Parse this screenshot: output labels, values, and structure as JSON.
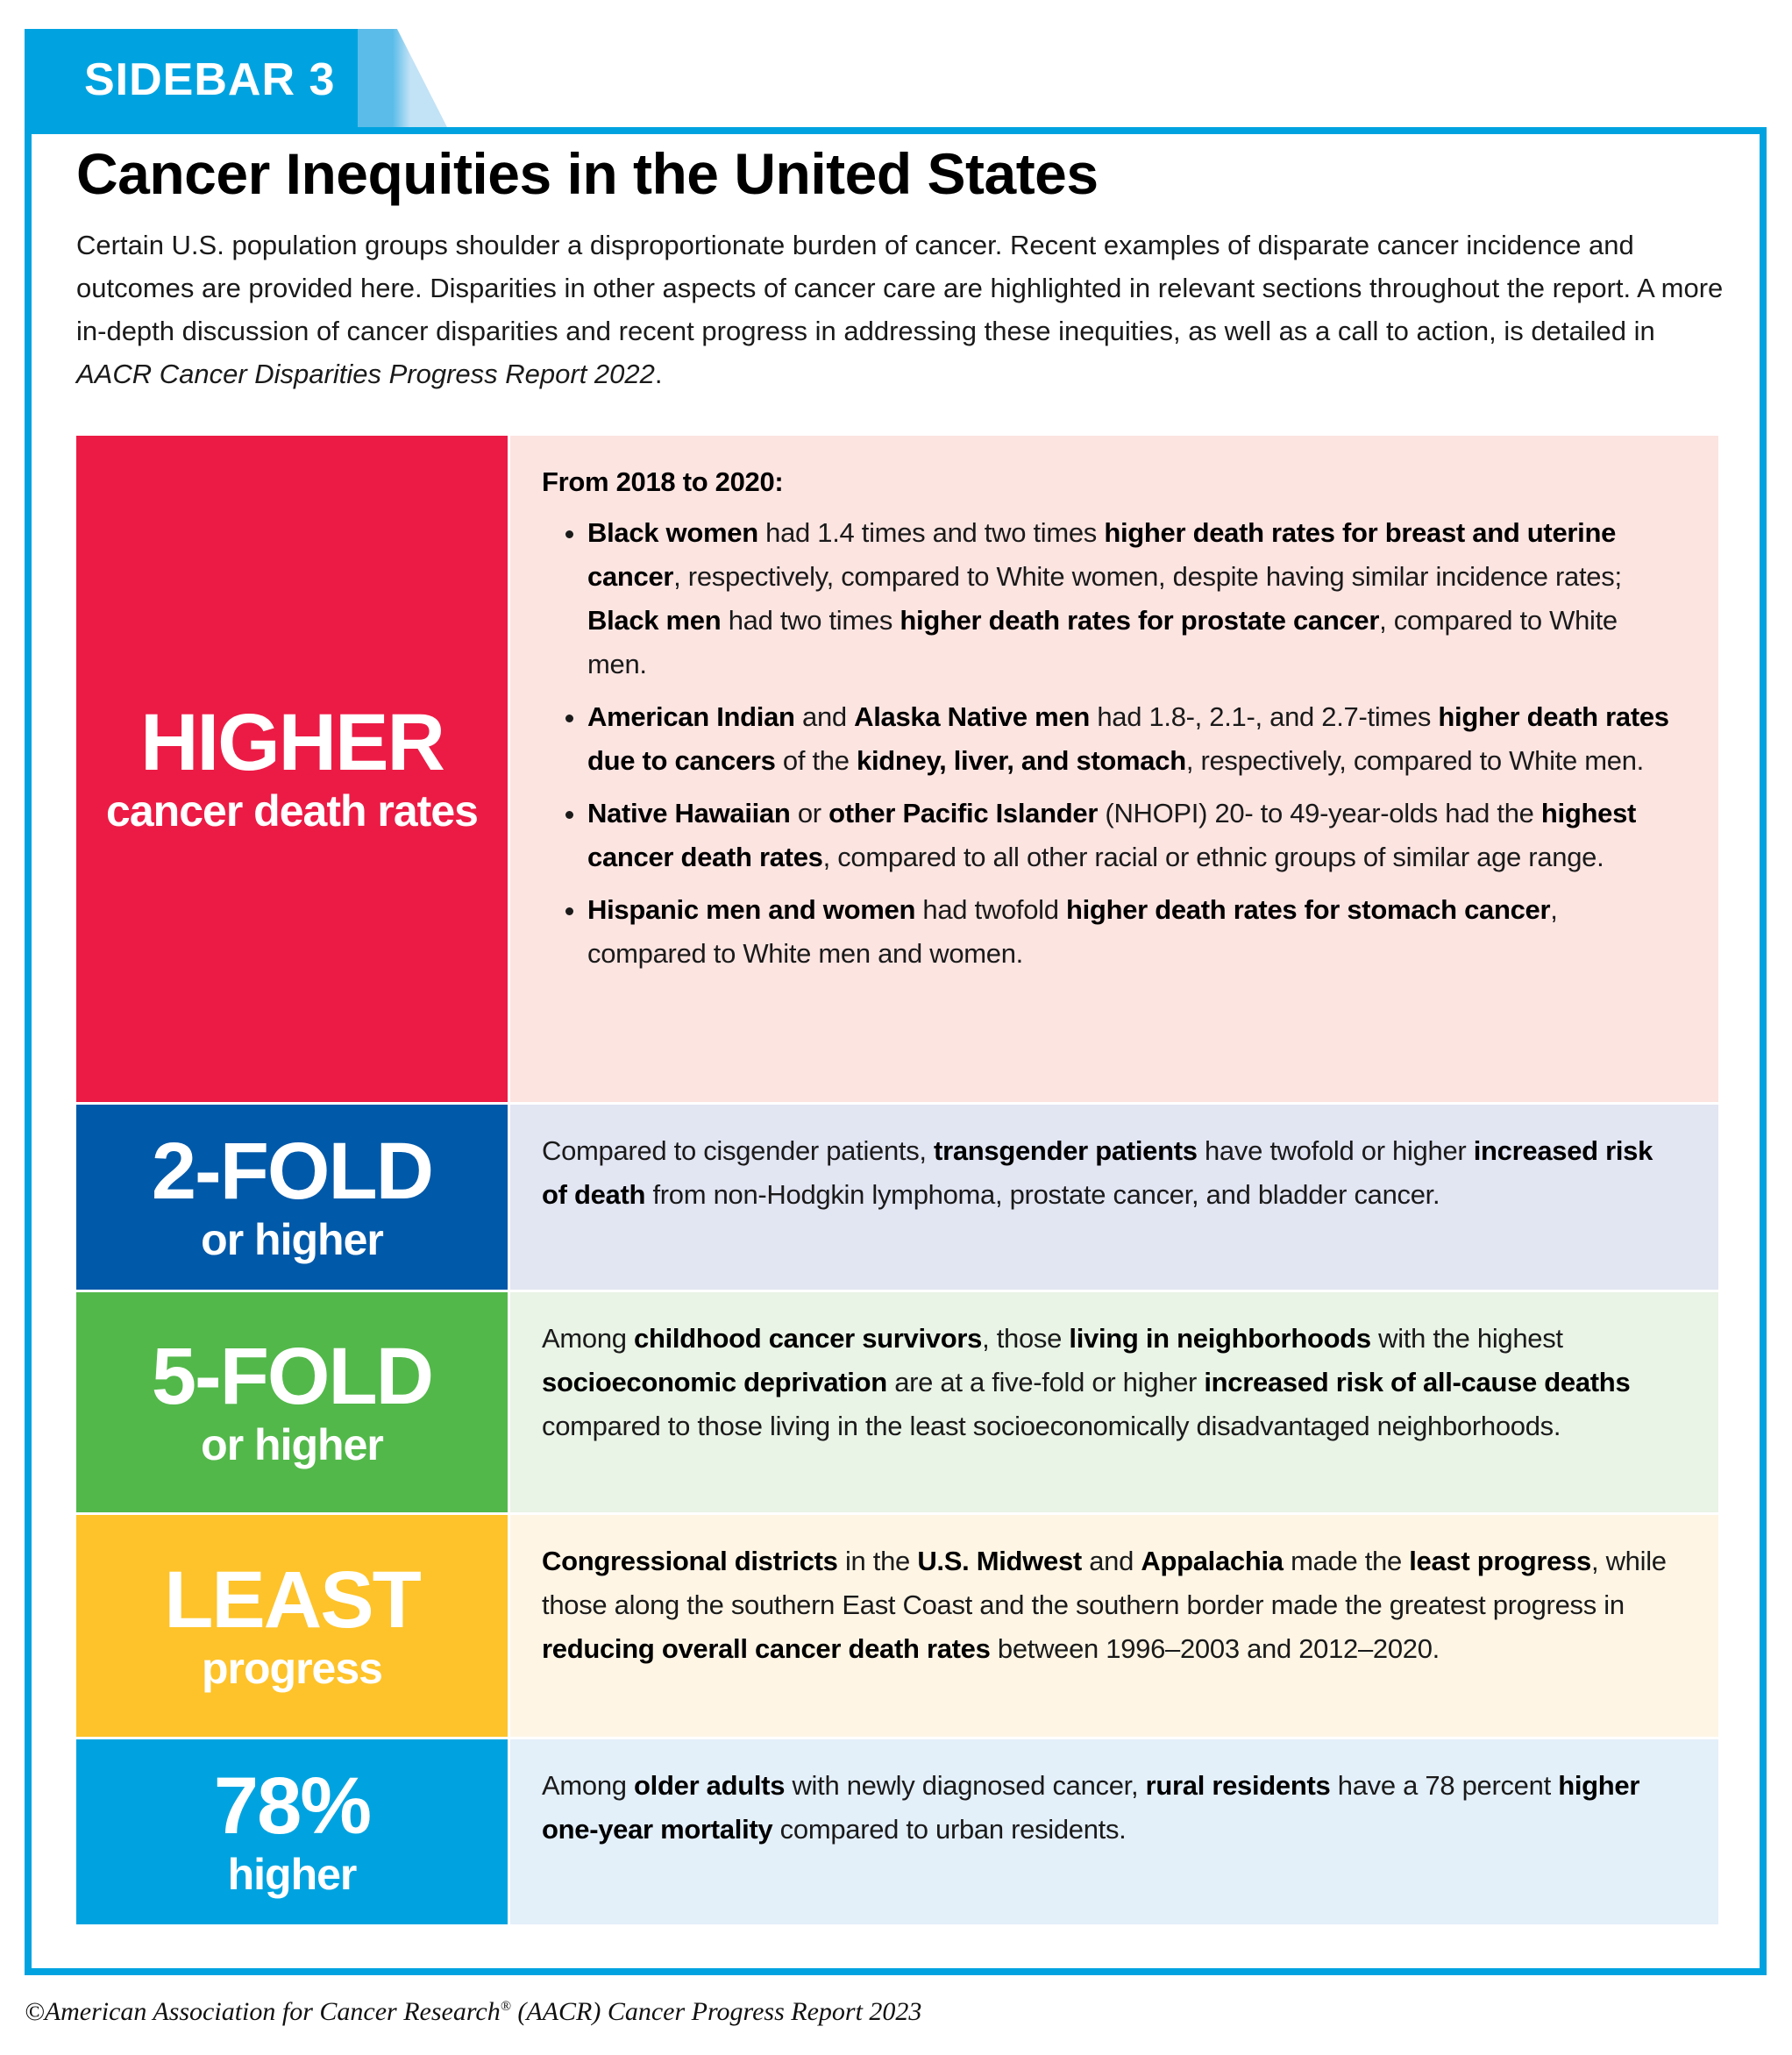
{
  "tab": {
    "label": "SIDEBAR 3"
  },
  "title": "Cancer Inequities in the United States",
  "intro": {
    "text": "Certain U.S. population groups shoulder a disproportionate burden of cancer. Recent examples of disparate cancer incidence and outcomes are provided here. Disparities in other aspects of cancer care are highlighted in relevant sections throughout the report. A more in-depth discussion of cancer disparities and recent progress in addressing these inequities, as well as a call to action, is detailed in ",
    "italic": "AACR Cancer Disparities Progress Report 2022",
    "end": "."
  },
  "colors": {
    "frame": "#00a3e0"
  },
  "rows": [
    {
      "big": "HIGHER",
      "small": "cancer death rates",
      "color": "#ec1b45",
      "bg": "#fce4e1",
      "heading": "From 2018 to 2020:",
      "bullets": [
        [
          [
            "Black women",
            1
          ],
          [
            " had 1.4 times and two times ",
            0
          ],
          [
            "higher death rates for breast and uterine cancer",
            1
          ],
          [
            ", respectively, compared to White women, despite having similar incidence rates; ",
            0
          ],
          [
            "Black men",
            1
          ],
          [
            " had two times ",
            0
          ],
          [
            "higher death rates for prostate cancer",
            1
          ],
          [
            ", compared to White men.",
            0
          ]
        ],
        [
          [
            "American Indian",
            1
          ],
          [
            " and ",
            0
          ],
          [
            "Alaska Native men",
            1
          ],
          [
            " had 1.8-, 2.1-, and 2.7-times ",
            0
          ],
          [
            "higher death rates due to cancers",
            1
          ],
          [
            " of the ",
            0
          ],
          [
            "kidney, liver, and stomach",
            1
          ],
          [
            ", respectively, compared to White men.",
            0
          ]
        ],
        [
          [
            "Native Hawaiian",
            1
          ],
          [
            " or ",
            0
          ],
          [
            "other Pacific Islander",
            1
          ],
          [
            " (NHOPI) 20- to 49-year-olds had the ",
            0
          ],
          [
            "highest cancer death rates",
            1
          ],
          [
            ", compared to all other racial or ethnic groups of similar age range.",
            0
          ]
        ],
        [
          [
            "Hispanic men and women",
            1
          ],
          [
            " had twofold ",
            0
          ],
          [
            "higher death rates for stomach cancer",
            1
          ],
          [
            ", compared to White men and women.",
            0
          ]
        ]
      ]
    },
    {
      "big": "2-FOLD",
      "small": "or higher",
      "color": "#0059a9",
      "bg": "#e2e5f2",
      "segments": [
        [
          "Compared to cisgender patients, ",
          0
        ],
        [
          "transgender patients",
          1
        ],
        [
          " have twofold or higher ",
          0
        ],
        [
          "increased risk of death",
          1
        ],
        [
          " from non-Hodgkin lymphoma, prostate cancer, and bladder cancer.",
          0
        ]
      ]
    },
    {
      "big": "5-FOLD",
      "small": "or higher",
      "color": "#52b84a",
      "bg": "#e9f3e6",
      "segments": [
        [
          "Among ",
          0
        ],
        [
          "childhood cancer survivors",
          1
        ],
        [
          ", those ",
          0
        ],
        [
          "living in neighborhoods",
          1
        ],
        [
          " with the highest ",
          0
        ],
        [
          "socioeconomic deprivation",
          1
        ],
        [
          " are at a five-fold or higher ",
          0
        ],
        [
          "increased risk of all-cause deaths",
          1
        ],
        [
          " compared to those living in the least socioeconomically disadvantaged neighborhoods.",
          0
        ]
      ]
    },
    {
      "big": "LEAST",
      "small": "progress",
      "color": "#fec32a",
      "bg": "#fef5e5",
      "segments": [
        [
          "Congressional districts",
          1
        ],
        [
          " in the ",
          0
        ],
        [
          "U.S. Midwest",
          1
        ],
        [
          " and ",
          0
        ],
        [
          "Appalachia",
          1
        ],
        [
          " made the ",
          0
        ],
        [
          "least progress",
          1
        ],
        [
          ", while those along the southern East Coast and the southern border made the greatest progress in ",
          0
        ],
        [
          "reducing overall cancer death rates",
          1
        ],
        [
          " between 1996–2003 and 2012–2020.",
          0
        ]
      ]
    },
    {
      "big": "78%",
      "small": "higher",
      "color": "#00a3e0",
      "bg": "#e3eff9",
      "segments": [
        [
          "Among ",
          0
        ],
        [
          "older adults",
          1
        ],
        [
          " with newly diagnosed cancer, ",
          0
        ],
        [
          "rural residents",
          1
        ],
        [
          " have a 78 percent ",
          0
        ],
        [
          "higher one-year mortality",
          1
        ],
        [
          " compared to urban residents.",
          0
        ]
      ]
    }
  ],
  "footer": {
    "text": "©American Association for Cancer Research",
    "reg": "®",
    "rest": " (AACR) Cancer Progress Report 2023"
  }
}
